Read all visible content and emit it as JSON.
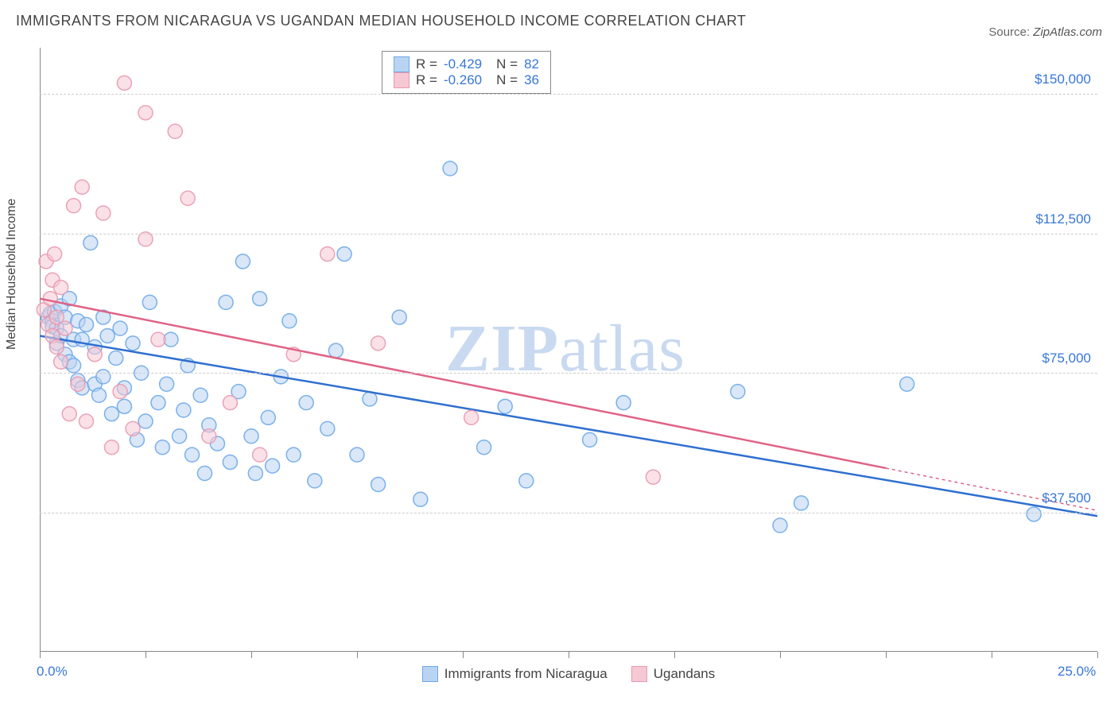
{
  "title": "IMMIGRANTS FROM NICARAGUA VS UGANDAN MEDIAN HOUSEHOLD INCOME CORRELATION CHART",
  "source_label": "Source:",
  "source_value": "ZipAtlas.com",
  "ylabel": "Median Household Income",
  "watermark_a": "ZIP",
  "watermark_b": "atlas",
  "chart": {
    "type": "scatter",
    "xlim": [
      0,
      25
    ],
    "ylim": [
      0,
      162500
    ],
    "xticks": [
      0,
      2.5,
      5,
      7.5,
      10,
      12.5,
      15,
      17.5,
      20,
      22.5,
      25
    ],
    "xtick_labels": {
      "0": "0.0%",
      "25": "25.0%"
    },
    "ygrid": [
      37500,
      75000,
      112500,
      150000
    ],
    "ytick_labels": {
      "37500": "$37,500",
      "75000": "$75,000",
      "112500": "$112,500",
      "150000": "$150,000"
    },
    "marker_radius": 9,
    "marker_opacity": 0.55,
    "marker_stroke_opacity": 0.9,
    "grid_color": "#cccccc",
    "axis_color": "#888888",
    "background_color": "#ffffff",
    "series": [
      {
        "name": "Immigrants from Nicaragua",
        "color": "#6ea8e8",
        "fill": "#b9d4f2",
        "line_color": "#2f6fd0",
        "R": "-0.429",
        "N": "82",
        "regression": {
          "x1": 0,
          "y1": 85000,
          "x2": 25,
          "y2": 36500,
          "dashed_from_x": null
        },
        "points": [
          [
            0.2,
            90000
          ],
          [
            0.25,
            91000
          ],
          [
            0.3,
            89000
          ],
          [
            0.3,
            87500
          ],
          [
            0.35,
            91500
          ],
          [
            0.4,
            87000
          ],
          [
            0.4,
            83000
          ],
          [
            0.5,
            85000
          ],
          [
            0.5,
            93000
          ],
          [
            0.6,
            80000
          ],
          [
            0.6,
            90000
          ],
          [
            0.7,
            78000
          ],
          [
            0.7,
            95000
          ],
          [
            0.8,
            84000
          ],
          [
            0.8,
            77000
          ],
          [
            0.9,
            89000
          ],
          [
            0.9,
            73000
          ],
          [
            1.0,
            84000
          ],
          [
            1.0,
            71000
          ],
          [
            1.1,
            88000
          ],
          [
            1.2,
            110000
          ],
          [
            1.3,
            82000
          ],
          [
            1.3,
            72000
          ],
          [
            1.4,
            69000
          ],
          [
            1.5,
            90000
          ],
          [
            1.5,
            74000
          ],
          [
            1.6,
            85000
          ],
          [
            1.7,
            64000
          ],
          [
            1.8,
            79000
          ],
          [
            1.9,
            87000
          ],
          [
            2.0,
            71000
          ],
          [
            2.0,
            66000
          ],
          [
            2.2,
            83000
          ],
          [
            2.3,
            57000
          ],
          [
            2.4,
            75000
          ],
          [
            2.5,
            62000
          ],
          [
            2.6,
            94000
          ],
          [
            2.8,
            67000
          ],
          [
            2.9,
            55000
          ],
          [
            3.0,
            72000
          ],
          [
            3.1,
            84000
          ],
          [
            3.3,
            58000
          ],
          [
            3.4,
            65000
          ],
          [
            3.5,
            77000
          ],
          [
            3.6,
            53000
          ],
          [
            3.8,
            69000
          ],
          [
            3.9,
            48000
          ],
          [
            4.0,
            61000
          ],
          [
            4.2,
            56000
          ],
          [
            4.4,
            94000
          ],
          [
            4.5,
            51000
          ],
          [
            4.7,
            70000
          ],
          [
            4.8,
            105000
          ],
          [
            5.0,
            58000
          ],
          [
            5.1,
            48000
          ],
          [
            5.2,
            95000
          ],
          [
            5.4,
            63000
          ],
          [
            5.5,
            50000
          ],
          [
            5.7,
            74000
          ],
          [
            5.9,
            89000
          ],
          [
            6.0,
            53000
          ],
          [
            6.3,
            67000
          ],
          [
            6.5,
            46000
          ],
          [
            6.8,
            60000
          ],
          [
            7.0,
            81000
          ],
          [
            7.2,
            107000
          ],
          [
            7.5,
            53000
          ],
          [
            7.8,
            68000
          ],
          [
            8.0,
            45000
          ],
          [
            8.5,
            90000
          ],
          [
            9.0,
            41000
          ],
          [
            9.7,
            130000
          ],
          [
            10.5,
            55000
          ],
          [
            11.0,
            66000
          ],
          [
            11.5,
            46000
          ],
          [
            13.0,
            57000
          ],
          [
            13.8,
            67000
          ],
          [
            16.5,
            70000
          ],
          [
            17.5,
            34000
          ],
          [
            18.0,
            40000
          ],
          [
            20.5,
            72000
          ],
          [
            23.5,
            37000
          ]
        ]
      },
      {
        "name": "Ugandans",
        "color": "#e89ab0",
        "fill": "#f6c8d4",
        "line_color": "#e06385",
        "R": "-0.260",
        "N": "36",
        "regression": {
          "x1": 0,
          "y1": 95000,
          "x2": 25,
          "y2": 38000,
          "dashed_from_x": 20
        },
        "points": [
          [
            0.1,
            92000
          ],
          [
            0.15,
            105000
          ],
          [
            0.2,
            88000
          ],
          [
            0.25,
            95000
          ],
          [
            0.3,
            85000
          ],
          [
            0.3,
            100000
          ],
          [
            0.35,
            107000
          ],
          [
            0.4,
            82000
          ],
          [
            0.4,
            90000
          ],
          [
            0.5,
            98000
          ],
          [
            0.5,
            78000
          ],
          [
            0.6,
            87000
          ],
          [
            0.7,
            64000
          ],
          [
            0.8,
            120000
          ],
          [
            0.9,
            72000
          ],
          [
            1.0,
            125000
          ],
          [
            1.1,
            62000
          ],
          [
            1.3,
            80000
          ],
          [
            1.5,
            118000
          ],
          [
            1.7,
            55000
          ],
          [
            1.9,
            70000
          ],
          [
            2.0,
            153000
          ],
          [
            2.2,
            60000
          ],
          [
            2.5,
            145000
          ],
          [
            2.5,
            111000
          ],
          [
            2.8,
            84000
          ],
          [
            3.2,
            140000
          ],
          [
            3.5,
            122000
          ],
          [
            4.0,
            58000
          ],
          [
            4.5,
            67000
          ],
          [
            5.2,
            53000
          ],
          [
            6.0,
            80000
          ],
          [
            6.8,
            107000
          ],
          [
            8.0,
            83000
          ],
          [
            10.2,
            63000
          ],
          [
            14.5,
            47000
          ]
        ]
      }
    ]
  }
}
